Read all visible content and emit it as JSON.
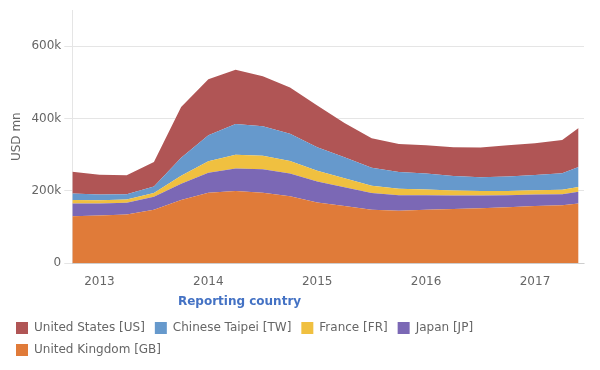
{
  "chart_data": {
    "type": "area",
    "stacked": true,
    "ylabel": "USD mn",
    "legend_title": "Reporting country",
    "legend_title_color": "#4472c4",
    "legend": "bottom",
    "grid": true,
    "x": [
      2012.75,
      2013.0,
      2013.25,
      2013.5,
      2013.75,
      2014.0,
      2014.25,
      2014.5,
      2014.75,
      2015.0,
      2015.25,
      2015.5,
      2015.75,
      2016.0,
      2016.25,
      2016.5,
      2016.75,
      2017.0,
      2017.25,
      2017.4
    ],
    "series": [
      {
        "name": "United Kingdom [GB]",
        "color": "#e07b39",
        "values": [
          130000,
          132000,
          135000,
          148000,
          175000,
          195000,
          200000,
          195000,
          185000,
          168000,
          158000,
          148000,
          145000,
          148000,
          150000,
          152000,
          155000,
          158000,
          160000,
          165000
        ]
      },
      {
        "name": "Japan [JP]",
        "color": "#7b68b5",
        "values": [
          35000,
          33000,
          32000,
          36000,
          45000,
          55000,
          62000,
          65000,
          63000,
          58000,
          52000,
          46000,
          43000,
          40000,
          37000,
          35000,
          33000,
          32000,
          31000,
          33000
        ]
      },
      {
        "name": "France [FR]",
        "color": "#f0c040",
        "values": [
          10000,
          9000,
          9000,
          10000,
          22000,
          32000,
          38000,
          37000,
          35000,
          30000,
          25000,
          20000,
          18000,
          16000,
          14000,
          13000,
          12000,
          12000,
          12000,
          13000
        ]
      },
      {
        "name": "Chinese Taipei [TW]",
        "color": "#6699cc",
        "values": [
          18000,
          16000,
          15000,
          18000,
          50000,
          72000,
          85000,
          82000,
          75000,
          65000,
          58000,
          50000,
          46000,
          44000,
          40000,
          38000,
          40000,
          42000,
          46000,
          55000
        ]
      },
      {
        "name": "United States [US]",
        "color": "#b05555",
        "values": [
          60000,
          55000,
          52000,
          68000,
          140000,
          155000,
          150000,
          138000,
          128000,
          115000,
          95000,
          82000,
          78000,
          78000,
          80000,
          82000,
          86000,
          88000,
          92000,
          108000
        ]
      }
    ],
    "xlim": [
      2012.75,
      2017.45
    ],
    "xticks": [
      2013,
      2014,
      2015,
      2016,
      2017
    ],
    "ylim": [
      0,
      700000
    ],
    "yticks": [
      0,
      {
        "value": 200000,
        "label": "200k"
      },
      {
        "value": 400000,
        "label": "400k"
      },
      {
        "value": 600000,
        "label": "600k"
      }
    ]
  }
}
